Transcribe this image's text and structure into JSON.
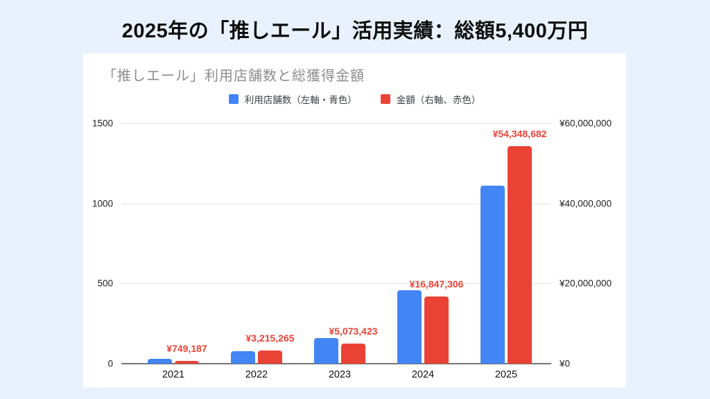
{
  "page": {
    "title": "2025年の「推しエール」活用実績：総額5,400万円",
    "background_color": "#e9f2fc"
  },
  "chart": {
    "title": "「推しエール」利用店舗数と総獲得金額",
    "legend": [
      {
        "icon": "blue-square",
        "color": "#4285f4",
        "label": "利用店舗数（左軸・青色）"
      },
      {
        "icon": "red-square",
        "color": "#ea4335",
        "label": "金額（右軸、赤色）"
      }
    ]
  },
  "chart_data": {
    "type": "bar",
    "title": "「推しエール」利用店舗数と総獲得金額",
    "categories": [
      "2021",
      "2022",
      "2023",
      "2024",
      "2025"
    ],
    "series": [
      {
        "name": "利用店舗数（左軸・青色）",
        "axis": "left",
        "color": "#4285f4",
        "values": [
          30,
          80,
          160,
          460,
          1113
        ]
      },
      {
        "name": "金額（右軸、赤色）",
        "axis": "right",
        "color": "#ea4335",
        "values": [
          749187,
          3215265,
          5073423,
          16847306,
          54348682
        ],
        "data_labels": [
          "¥749,187",
          "¥3,215,265",
          "¥5,073,423",
          "¥16,847,306",
          "¥54,348,682"
        ],
        "data_label_color": "#ea4335"
      }
    ],
    "left_axis": {
      "label": "",
      "ticks": [
        "0",
        "500",
        "1000",
        "1500"
      ],
      "range": [
        0,
        1500
      ]
    },
    "right_axis": {
      "label": "",
      "ticks": [
        "¥0",
        "¥20,000,000",
        "¥40,000,000",
        "¥60,000,000"
      ],
      "range": [
        0,
        60000000
      ]
    },
    "grid": true,
    "legend_position": "top"
  }
}
